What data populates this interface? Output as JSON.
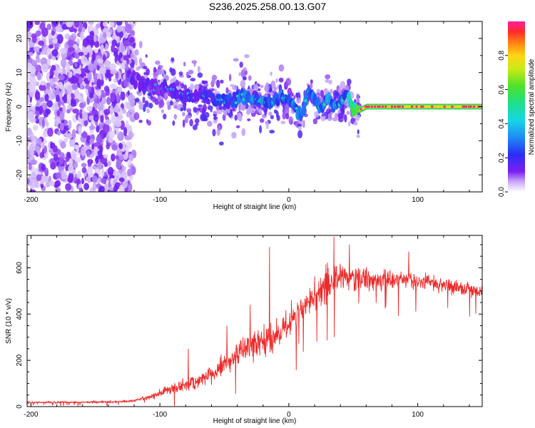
{
  "page": {
    "title": "S236.2025.258.00.13.G07"
  },
  "chart_data": [
    {
      "type": "heatmap",
      "title": "S236.2025.258.00.13.G07",
      "xlabel": "Height of straight line (km)",
      "ylabel": "Frequency (Hz)",
      "xlim": [
        -203,
        150
      ],
      "ylim": [
        -25,
        25
      ],
      "xticks": [
        -200,
        -100,
        0,
        100
      ],
      "yticks": [
        -20,
        -10,
        0,
        10,
        20
      ],
      "colorbar": {
        "label": "Normalized spectral amplitude",
        "range": [
          0.0,
          1.0
        ],
        "ticks": [
          0.0,
          0.2,
          0.4,
          0.6,
          0.8
        ],
        "colormap": "rainbow (white → violet → blue → cyan → green → yellow → red → magenta)"
      },
      "ridge": {
        "description": "dominant frequency ridge vs height",
        "x": [
          -125,
          -115,
          -105,
          -95,
          -85,
          -75,
          -65,
          -55,
          -45,
          -35,
          -25,
          -15,
          -5,
          5,
          10,
          15,
          20,
          25,
          30,
          35,
          40,
          45,
          50,
          55,
          60,
          80,
          100,
          120,
          150
        ],
        "y": [
          10,
          7,
          6,
          5,
          4,
          3,
          3,
          2,
          1,
          3,
          2,
          1,
          3,
          0,
          -3,
          5,
          2,
          -1,
          3,
          0,
          1,
          3,
          0,
          -1,
          0,
          0,
          0,
          0,
          0
        ],
        "amplitude": [
          0.15,
          0.15,
          0.15,
          0.15,
          0.2,
          0.2,
          0.2,
          0.25,
          0.25,
          0.3,
          0.3,
          0.3,
          0.3,
          0.3,
          0.3,
          0.3,
          0.3,
          0.35,
          0.35,
          0.35,
          0.35,
          0.35,
          0.6,
          0.8,
          0.9,
          0.9,
          0.9,
          0.9,
          0.9
        ]
      },
      "noise": {
        "description": "low-amplitude scattered noise across all frequencies",
        "x_range": [
          -203,
          -120
        ],
        "y_range": [
          -25,
          25
        ],
        "amplitude_range": [
          0.0,
          0.12
        ]
      },
      "colors": {
        "ridge_core": "#ff2f6a",
        "ridge_edge": "#35d06a",
        "noise_dark": "#7a1df0",
        "noise_light": "#e4d4fb"
      }
    },
    {
      "type": "line",
      "xlabel": "Height of straight line (km)",
      "ylabel": "SNR (10 * v/v)",
      "xlim": [
        -203,
        150
      ],
      "ylim": [
        0,
        740
      ],
      "xticks": [
        -200,
        -100,
        0,
        100
      ],
      "yticks": [
        0,
        200,
        400,
        600
      ],
      "line_color": "#ee2a2a",
      "series": [
        {
          "x": [
            -203,
            -180,
            -160,
            -140,
            -130,
            -120,
            -110,
            -100,
            -90,
            -80,
            -70,
            -60,
            -50,
            -40,
            -30,
            -20,
            -10,
            0,
            10,
            20,
            30,
            40,
            50,
            60,
            70,
            80,
            90,
            100,
            110,
            120,
            130,
            140,
            150
          ],
          "mean": [
            18,
            18,
            19,
            20,
            21,
            26,
            38,
            58,
            80,
            95,
            110,
            140,
            180,
            230,
            260,
            270,
            310,
            360,
            420,
            480,
            530,
            560,
            560,
            550,
            545,
            550,
            555,
            540,
            540,
            525,
            515,
            510,
            500
          ],
          "spread": [
            5,
            5,
            5,
            6,
            6,
            8,
            12,
            18,
            28,
            40,
            40,
            48,
            55,
            55,
            75,
            80,
            70,
            70,
            70,
            80,
            90,
            80,
            70,
            60,
            50,
            50,
            45,
            45,
            40,
            40,
            40,
            35,
            35
          ]
        }
      ],
      "peaks": [
        {
          "x": -78,
          "y": 250
        },
        {
          "x": -48,
          "y": 350
        },
        {
          "x": -30,
          "y": 440
        },
        {
          "x": -15,
          "y": 690
        },
        {
          "x": 2,
          "y": 460
        },
        {
          "x": 35,
          "y": 735
        },
        {
          "x": 47,
          "y": 700
        },
        {
          "x": 93,
          "y": 670
        }
      ]
    }
  ]
}
